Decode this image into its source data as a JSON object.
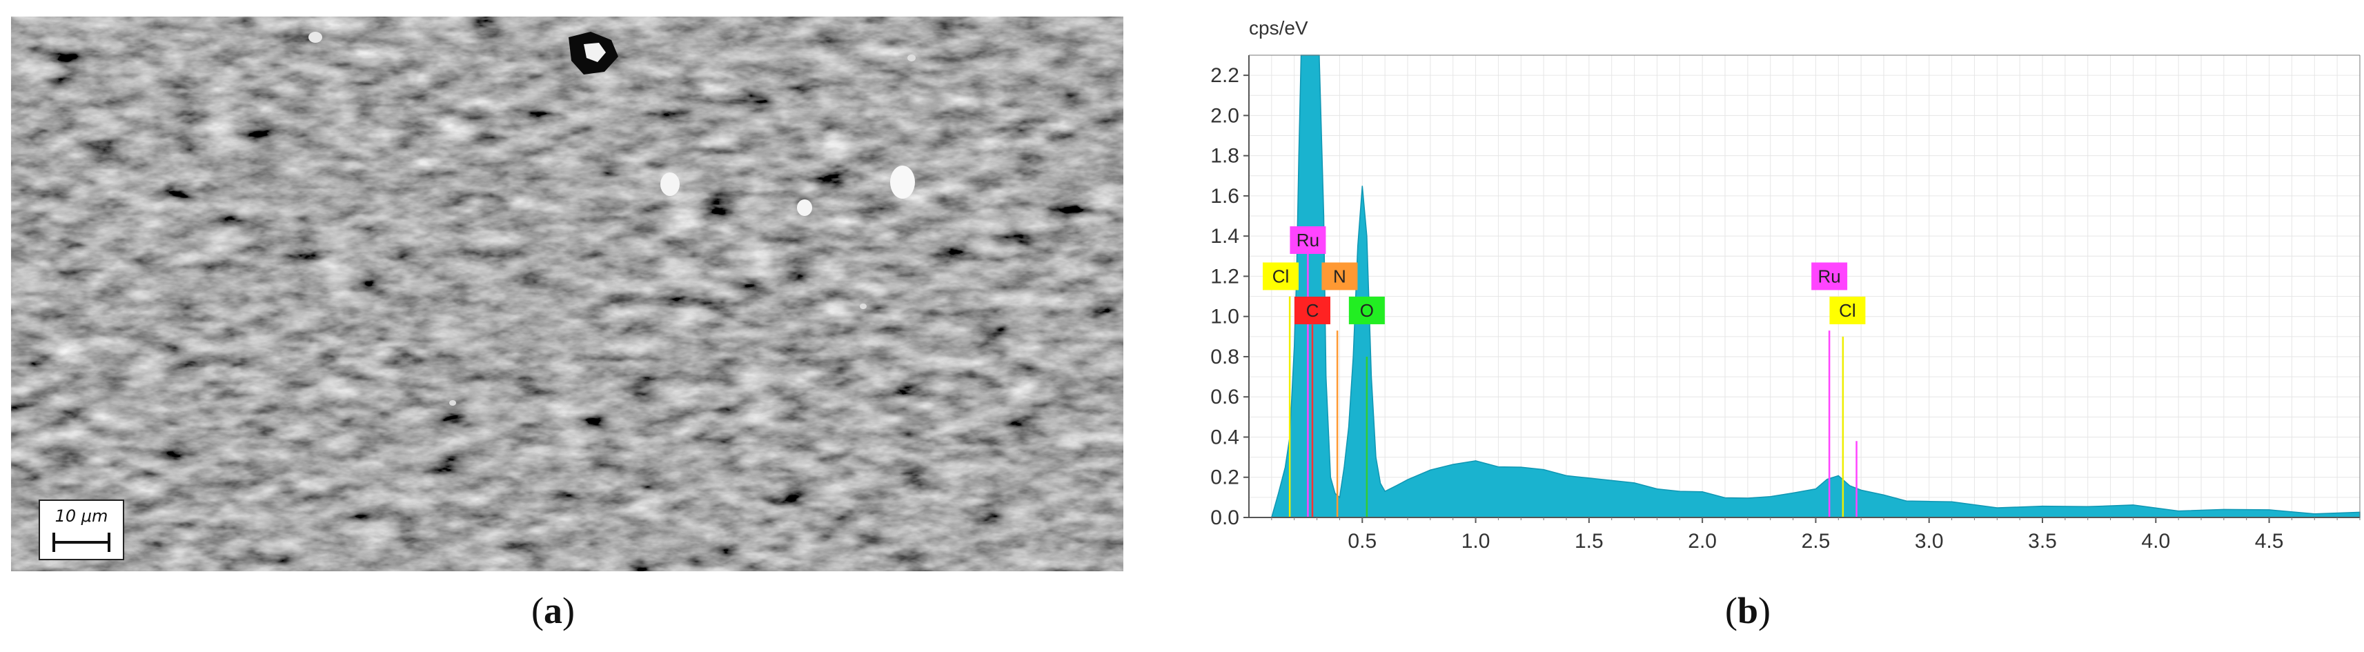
{
  "panels": {
    "a_label": "a",
    "b_label": "b"
  },
  "sem": {
    "scale_bar_text": "10 μm"
  },
  "chart_data": {
    "type": "area",
    "ylabel": "cps/eV",
    "xlabel": "",
    "title": "",
    "xlim": [
      0,
      4.9
    ],
    "ylim": [
      0,
      2.3
    ],
    "grid": true,
    "x_ticks": [
      0.5,
      1.0,
      1.5,
      2.0,
      2.5,
      3.0,
      3.5,
      4.0,
      4.5
    ],
    "x_tick_labels": [
      "0.5",
      "1.0",
      "1.5",
      "2.0",
      "2.5",
      "3.0",
      "3.5",
      "4.0",
      "4.5"
    ],
    "y_ticks": [
      0.0,
      0.2,
      0.4,
      0.6,
      0.8,
      1.0,
      1.2,
      1.4,
      1.6,
      1.8,
      2.0,
      2.2
    ],
    "y_tick_labels": [
      "0.0",
      "0.2",
      "0.4",
      "0.6",
      "0.8",
      "1.0",
      "1.2",
      "1.4",
      "1.6",
      "1.8",
      "2.0",
      "2.2"
    ],
    "fill_color": "#1ab3cf",
    "spectrum": {
      "x": [
        0.1,
        0.13,
        0.16,
        0.18,
        0.2,
        0.21,
        0.22,
        0.23,
        0.24,
        0.25,
        0.28,
        0.31,
        0.33,
        0.34,
        0.36,
        0.38,
        0.4,
        0.42,
        0.44,
        0.46,
        0.48,
        0.5,
        0.52,
        0.54,
        0.56,
        0.58,
        0.6,
        0.65,
        0.7,
        0.8,
        0.9,
        1.0,
        1.1,
        1.2,
        1.3,
        1.4,
        1.5,
        1.6,
        1.7,
        1.8,
        1.9,
        2.0,
        2.1,
        2.2,
        2.3,
        2.4,
        2.5,
        2.55,
        2.6,
        2.65,
        2.7,
        2.75,
        2.8,
        2.9,
        3.0,
        3.1,
        3.3,
        3.5,
        3.7,
        3.9,
        4.1,
        4.3,
        4.5,
        4.7,
        4.9
      ],
      "y": [
        0.0,
        0.12,
        0.25,
        0.4,
        0.85,
        1.2,
        1.8,
        2.3,
        2.3,
        2.3,
        2.3,
        2.3,
        1.5,
        0.7,
        0.2,
        0.12,
        0.1,
        0.25,
        0.45,
        0.8,
        1.35,
        1.65,
        1.4,
        0.7,
        0.3,
        0.17,
        0.13,
        0.15,
        0.2,
        0.24,
        0.26,
        0.27,
        0.26,
        0.25,
        0.23,
        0.22,
        0.2,
        0.18,
        0.16,
        0.15,
        0.13,
        0.12,
        0.11,
        0.1,
        0.1,
        0.11,
        0.15,
        0.19,
        0.2,
        0.17,
        0.14,
        0.12,
        0.1,
        0.09,
        0.08,
        0.07,
        0.06,
        0.06,
        0.05,
        0.05,
        0.04,
        0.04,
        0.03,
        0.03,
        0.03
      ]
    },
    "element_lines": [
      {
        "element": "Ru",
        "energy": 0.26,
        "height": 1.32,
        "color": "#ff44ff"
      },
      {
        "element": "Cl",
        "energy": 0.18,
        "height": 1.1,
        "color": "#eeee00"
      },
      {
        "element": "N",
        "energy": 0.39,
        "height": 0.93,
        "color": "#ff9933"
      },
      {
        "element": "C",
        "energy": 0.28,
        "height": 0.96,
        "color": "#ff3333"
      },
      {
        "element": "O",
        "energy": 0.52,
        "height": 0.8,
        "color": "#33cc33"
      },
      {
        "element": "Ru",
        "energy": 2.56,
        "height": 0.93,
        "color": "#ff44ff"
      },
      {
        "element": "Ru",
        "energy": 2.68,
        "height": 0.38,
        "color": "#ff44ff"
      },
      {
        "element": "Cl",
        "energy": 2.62,
        "height": 0.9,
        "color": "#eeee00"
      }
    ],
    "peak_labels": [
      {
        "text": "Ru",
        "x": 0.26,
        "y": 1.38,
        "color": "#ff44ff"
      },
      {
        "text": "Cl",
        "x": 0.14,
        "y": 1.2,
        "color": "#ffff00"
      },
      {
        "text": "N",
        "x": 0.4,
        "y": 1.2,
        "color": "#ff9933"
      },
      {
        "text": "C",
        "x": 0.28,
        "y": 1.03,
        "color": "#ff2222"
      },
      {
        "text": "O",
        "x": 0.52,
        "y": 1.03,
        "color": "#22ee22"
      },
      {
        "text": "Ru",
        "x": 2.56,
        "y": 1.2,
        "color": "#ff44ff"
      },
      {
        "text": "Cl",
        "x": 2.64,
        "y": 1.03,
        "color": "#ffff00"
      }
    ]
  }
}
